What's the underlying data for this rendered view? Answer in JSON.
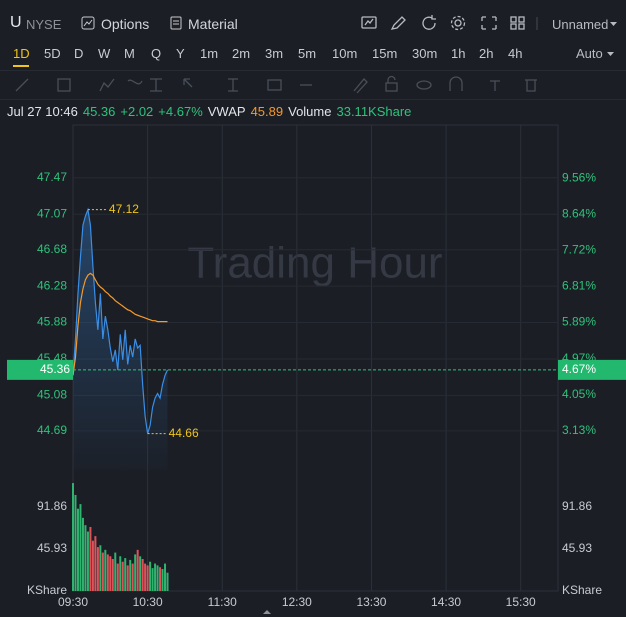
{
  "toolbar": {
    "symbol": "U",
    "exchange": "NYSE",
    "buttons": [
      "Options",
      "Material"
    ],
    "layout": "Unnamed"
  },
  "periods": {
    "items": [
      "1D",
      "5D",
      "D",
      "W",
      "M",
      "Q",
      "Y",
      "1m",
      "2m",
      "3m",
      "5m",
      "10m",
      "15m",
      "30m",
      "1h",
      "2h",
      "4h"
    ],
    "active": "1D",
    "scale_mode": "Auto"
  },
  "info": {
    "time": "Jul 27 10:46",
    "price": 45.36,
    "change": "+2.02",
    "change_pct": "+4.67%",
    "vwap": 45.89,
    "volume": "33.11KShare"
  },
  "chart_data": [
    {
      "type": "line",
      "watermark": "Trading Hour",
      "x": [
        "09:30",
        "09:32",
        "09:34",
        "09:36",
        "09:38",
        "09:40",
        "09:42",
        "09:44",
        "09:46",
        "09:48",
        "09:50",
        "09:52",
        "09:54",
        "09:56",
        "09:58",
        "10:00",
        "10:02",
        "10:04",
        "10:06",
        "10:08",
        "10:10",
        "10:12",
        "10:14",
        "10:16",
        "10:18",
        "10:20",
        "10:22",
        "10:24",
        "10:26",
        "10:28",
        "10:30",
        "10:32",
        "10:34",
        "10:36",
        "10:38",
        "10:40",
        "10:42",
        "10:44",
        "10:46"
      ],
      "xlim": [
        "09:30",
        "16:00"
      ],
      "xticks": [
        "09:30",
        "10:30",
        "11:30",
        "12:30",
        "13:30",
        "14:30",
        "15:30"
      ],
      "series": [
        {
          "color": "#3a8ee6",
          "values": [
            45.3,
            45.7,
            46.2,
            46.6,
            46.95,
            47.05,
            47.12,
            46.95,
            46.5,
            46.1,
            45.8,
            46.2,
            45.7,
            45.95,
            45.8,
            45.6,
            45.45,
            45.58,
            45.36,
            45.75,
            45.47,
            45.8,
            45.42,
            45.63,
            45.5,
            45.7,
            45.6,
            45.63,
            45.2,
            44.85,
            44.66,
            44.75,
            44.95,
            45.05,
            45.1,
            45.05,
            45.2,
            45.3,
            45.36
          ]
        },
        {
          "name": "VWAP",
          "color": "#f29a2e",
          "values": [
            45.3,
            45.5,
            45.85,
            46.1,
            46.25,
            46.35,
            46.4,
            46.42,
            46.4,
            46.35,
            46.3,
            46.27,
            46.25,
            46.22,
            46.2,
            46.17,
            46.15,
            46.12,
            46.1,
            46.08,
            46.06,
            46.04,
            46.02,
            46.01,
            45.99,
            45.97,
            45.96,
            45.95,
            45.94,
            45.93,
            45.92,
            45.91,
            45.9,
            45.9,
            45.89,
            45.89,
            45.89,
            45.89,
            45.89
          ]
        }
      ],
      "ylim": [
        44.26,
        48.05
      ],
      "yticks": [
        47.47,
        47.07,
        46.68,
        46.28,
        45.88,
        45.48,
        45.08,
        44.69
      ],
      "y2lim": [
        2.14,
        10.91
      ],
      "y2ticks": [
        {
          "value": 9.56,
          "label": "9.56%"
        },
        {
          "value": 8.64,
          "label": "8.64%"
        },
        {
          "value": 7.72,
          "label": "7.72%"
        },
        {
          "value": 6.81,
          "label": "6.81%"
        },
        {
          "value": 5.89,
          "label": "5.89%"
        },
        {
          "value": 4.97,
          "label": "4.97%"
        },
        {
          "value": 4.05,
          "label": "4.05%"
        },
        {
          "value": 3.13,
          "label": "3.13%"
        }
      ],
      "last_pct": {
        "value": 4.67,
        "label": "4.67%"
      },
      "annotations": [
        {
          "x": "09:42",
          "y": 47.12
        },
        {
          "x": "10:30",
          "y": 44.66
        }
      ],
      "grid": true
    },
    {
      "type": "bar",
      "name": "Volume",
      "x": [
        "09:30",
        "09:32",
        "09:34",
        "09:36",
        "09:38",
        "09:40",
        "09:42",
        "09:44",
        "09:46",
        "09:48",
        "09:50",
        "09:52",
        "09:54",
        "09:56",
        "09:58",
        "10:00",
        "10:02",
        "10:04",
        "10:06",
        "10:08",
        "10:10",
        "10:12",
        "10:14",
        "10:16",
        "10:18",
        "10:20",
        "10:22",
        "10:24",
        "10:26",
        "10:28",
        "10:30",
        "10:32",
        "10:34",
        "10:36",
        "10:38",
        "10:40",
        "10:42",
        "10:44",
        "10:46"
      ],
      "values": [
        118,
        105,
        90,
        95,
        80,
        72,
        65,
        70,
        55,
        60,
        48,
        50,
        42,
        45,
        40,
        38,
        35,
        42,
        30,
        38,
        32,
        36,
        28,
        34,
        30,
        40,
        45,
        38,
        35,
        30,
        28,
        32,
        25,
        30,
        28,
        26,
        24,
        30,
        20
      ],
      "up_color": "#2fb36f",
      "down_color": "#e0525a",
      "ylim": [
        0,
        132.3
      ],
      "yticks": [
        45.93,
        91.86
      ],
      "ylabel": "KShare"
    }
  ]
}
